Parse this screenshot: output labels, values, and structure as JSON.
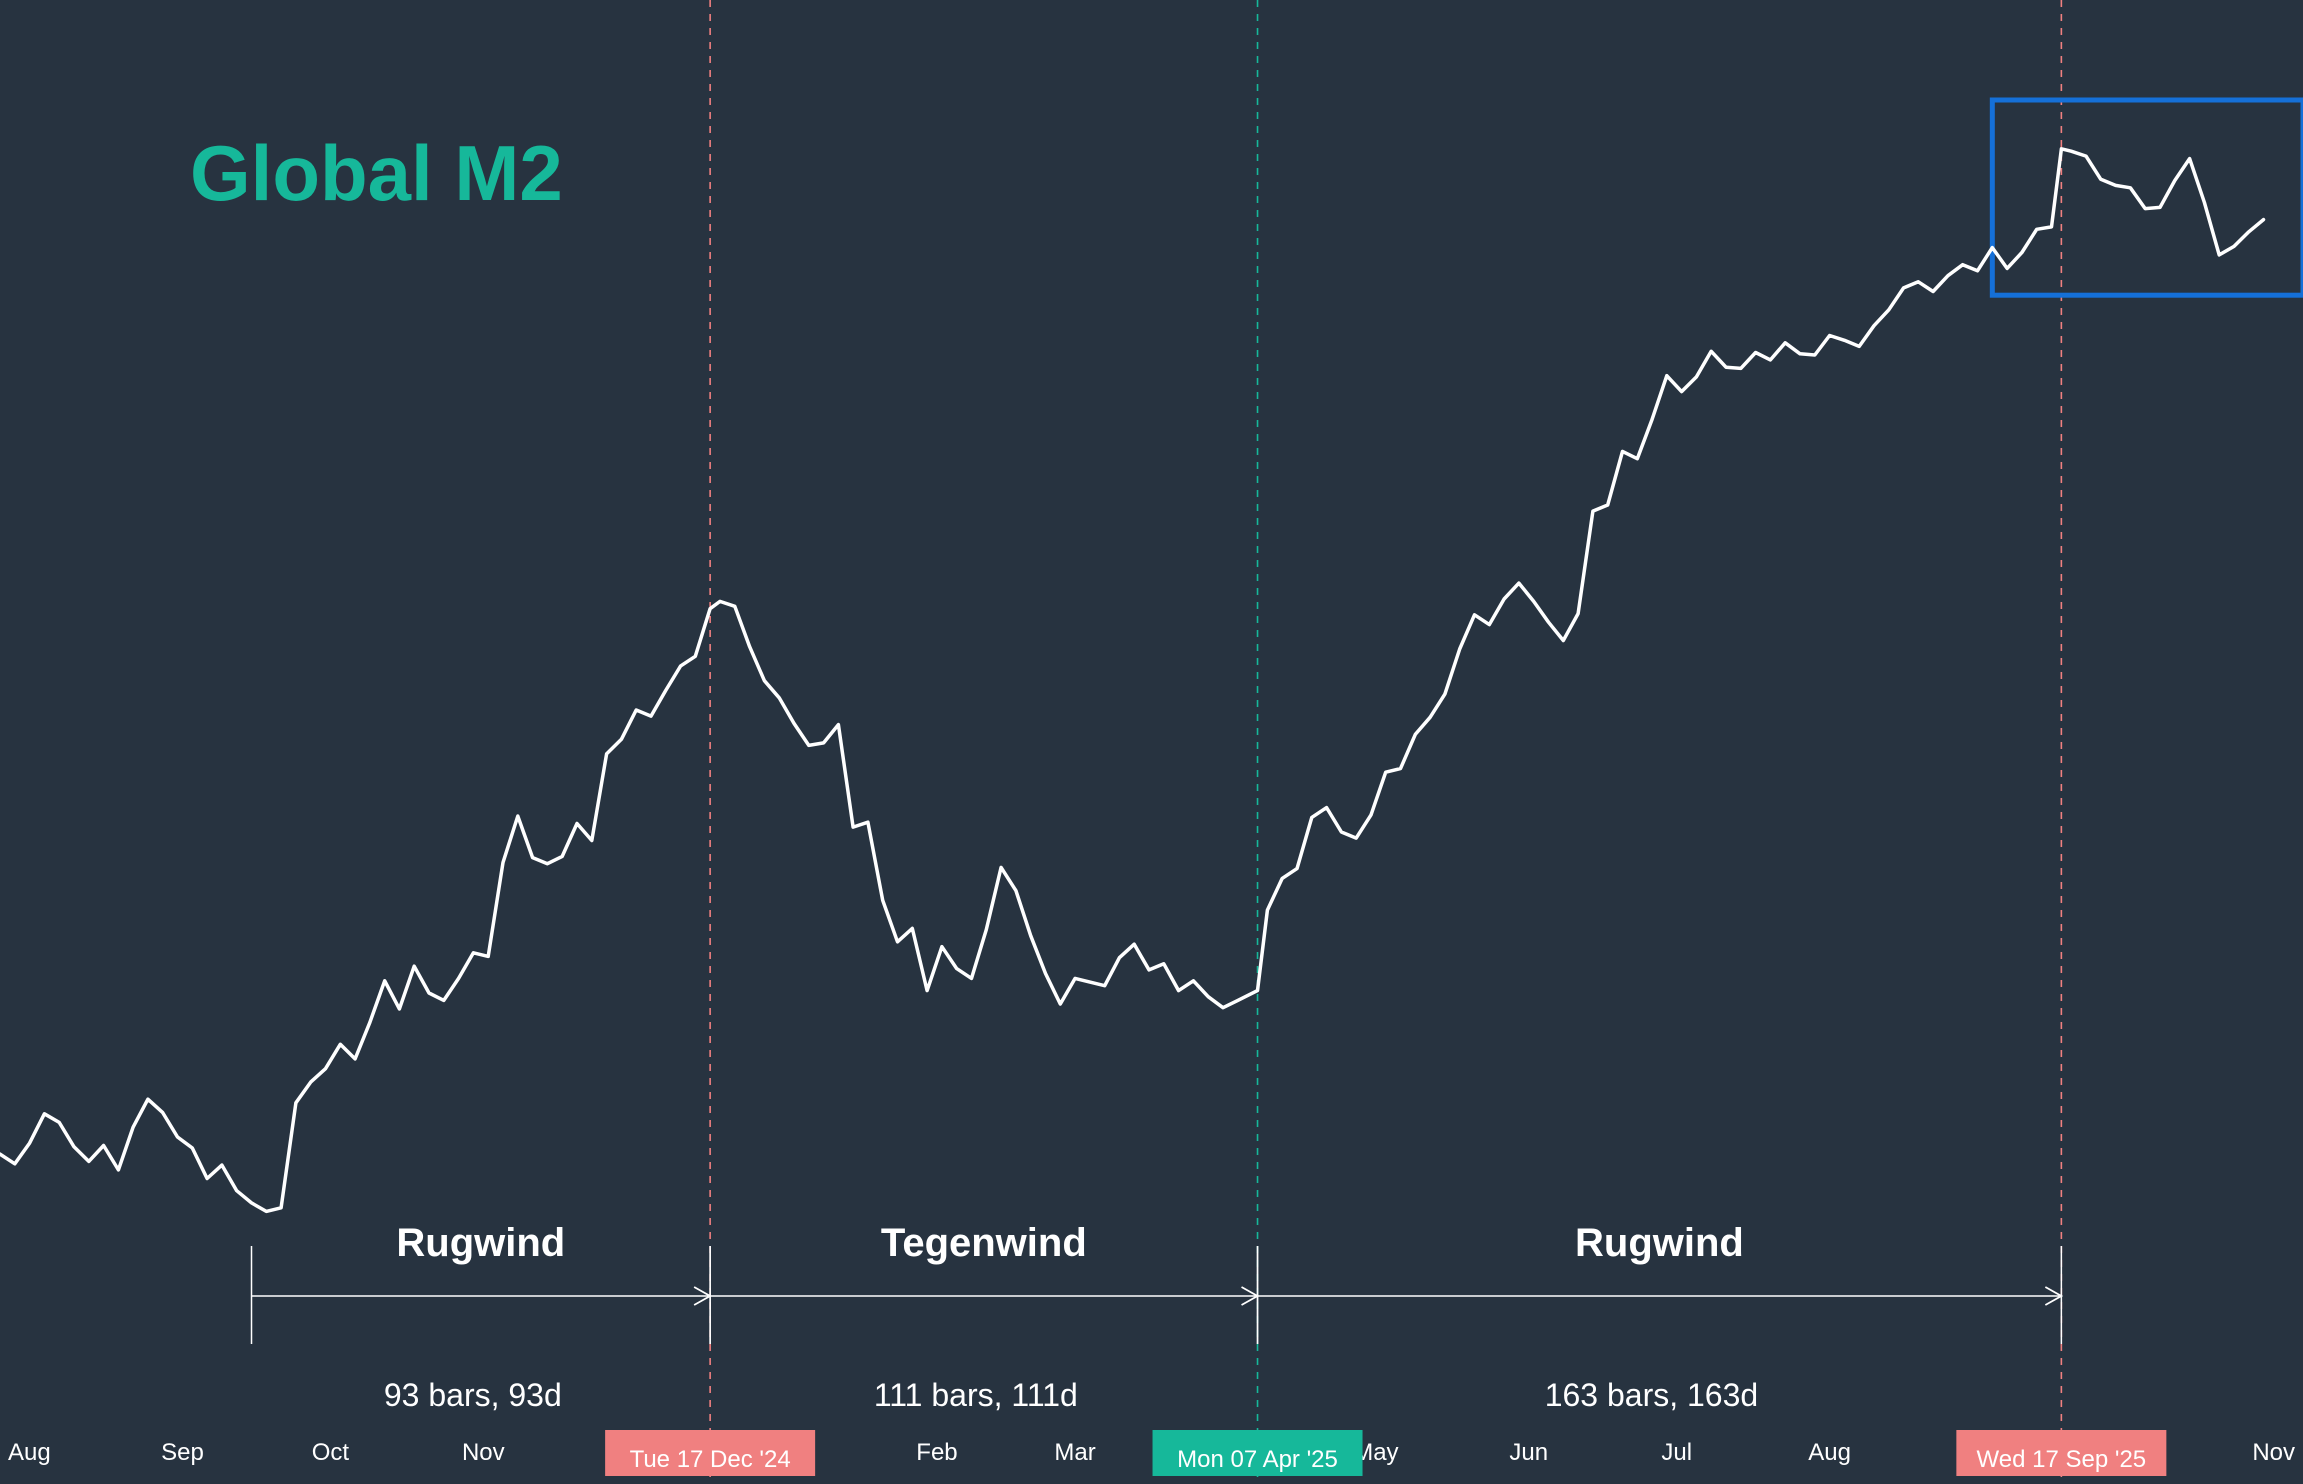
{
  "colors": {
    "background": "#273340",
    "title": "#16b89a",
    "line": "#ffffff",
    "headwind_marker": "#f08080",
    "tailwind_marker": "#16b89a",
    "highlight_box": "#1570d8"
  },
  "chart_data": {
    "type": "line",
    "title": "Global M2",
    "grid": false,
    "x_axis": {
      "start": "2024-07-26",
      "end": "2025-11-05",
      "tick_labels": [
        {
          "label": "Aug",
          "date": "2024-08-01"
        },
        {
          "label": "Sep",
          "date": "2024-09-01"
        },
        {
          "label": "Oct",
          "date": "2024-10-01"
        },
        {
          "label": "Nov",
          "date": "2024-11-01"
        },
        {
          "label": "Feb",
          "date": "2025-02-01"
        },
        {
          "label": "Mar",
          "date": "2025-03-01"
        },
        {
          "label": "May",
          "date": "2025-05-01"
        },
        {
          "label": "Jun",
          "date": "2025-06-01"
        },
        {
          "label": "Jul",
          "date": "2025-07-01"
        },
        {
          "label": "Aug",
          "date": "2025-08-01"
        },
        {
          "label": "Nov",
          "date": "2025-11-01"
        }
      ]
    },
    "y_range": [
      0,
      100
    ],
    "series": [
      {
        "points": [
          [
            "2024-07-26",
            13.6
          ],
          [
            "2024-07-29",
            12.8
          ],
          [
            "2024-08-01",
            14.5
          ],
          [
            "2024-08-04",
            16.9
          ],
          [
            "2024-08-07",
            16.2
          ],
          [
            "2024-08-10",
            14.2
          ],
          [
            "2024-08-13",
            13.0
          ],
          [
            "2024-08-16",
            14.3
          ],
          [
            "2024-08-19",
            12.3
          ],
          [
            "2024-08-22",
            15.8
          ],
          [
            "2024-08-25",
            18.1
          ],
          [
            "2024-08-28",
            17.0
          ],
          [
            "2024-08-31",
            15.0
          ],
          [
            "2024-09-03",
            14.1
          ],
          [
            "2024-09-06",
            11.6
          ],
          [
            "2024-09-09",
            12.7
          ],
          [
            "2024-09-12",
            10.6
          ],
          [
            "2024-09-15",
            9.6
          ],
          [
            "2024-09-18",
            8.9
          ],
          [
            "2024-09-21",
            9.2
          ],
          [
            "2024-09-24",
            17.8
          ],
          [
            "2024-09-27",
            19.5
          ],
          [
            "2024-09-30",
            20.6
          ],
          [
            "2024-10-03",
            22.6
          ],
          [
            "2024-10-06",
            21.4
          ],
          [
            "2024-10-09",
            24.4
          ],
          [
            "2024-10-12",
            27.8
          ],
          [
            "2024-10-15",
            25.5
          ],
          [
            "2024-10-18",
            29.0
          ],
          [
            "2024-10-21",
            26.8
          ],
          [
            "2024-10-24",
            26.2
          ],
          [
            "2024-10-27",
            28.0
          ],
          [
            "2024-10-30",
            30.1
          ],
          [
            "2024-11-02",
            29.8
          ],
          [
            "2024-11-05",
            37.5
          ],
          [
            "2024-11-08",
            41.3
          ],
          [
            "2024-11-11",
            37.9
          ],
          [
            "2024-11-14",
            37.4
          ],
          [
            "2024-11-17",
            38.0
          ],
          [
            "2024-11-20",
            40.7
          ],
          [
            "2024-11-23",
            39.3
          ],
          [
            "2024-11-26",
            46.4
          ],
          [
            "2024-11-29",
            47.6
          ],
          [
            "2024-12-02",
            50.0
          ],
          [
            "2024-12-05",
            49.5
          ],
          [
            "2024-12-08",
            51.6
          ],
          [
            "2024-12-11",
            53.6
          ],
          [
            "2024-12-14",
            54.4
          ],
          [
            "2024-12-17",
            58.3
          ],
          [
            "2024-12-19",
            58.9
          ],
          [
            "2024-12-22",
            58.5
          ],
          [
            "2024-12-25",
            55.2
          ],
          [
            "2024-12-28",
            52.4
          ],
          [
            "2024-12-31",
            51.0
          ],
          [
            "2025-01-03",
            48.9
          ],
          [
            "2025-01-06",
            47.1
          ],
          [
            "2025-01-09",
            47.3
          ],
          [
            "2025-01-12",
            48.8
          ],
          [
            "2025-01-15",
            40.4
          ],
          [
            "2025-01-18",
            40.8
          ],
          [
            "2025-01-21",
            34.4
          ],
          [
            "2025-01-24",
            31.0
          ],
          [
            "2025-01-27",
            32.1
          ],
          [
            "2025-01-30",
            27.0
          ],
          [
            "2025-02-02",
            30.6
          ],
          [
            "2025-02-05",
            28.8
          ],
          [
            "2025-02-08",
            28.0
          ],
          [
            "2025-02-11",
            32.0
          ],
          [
            "2025-02-14",
            37.1
          ],
          [
            "2025-02-17",
            35.2
          ],
          [
            "2025-02-20",
            31.5
          ],
          [
            "2025-02-23",
            28.4
          ],
          [
            "2025-02-26",
            25.9
          ],
          [
            "2025-03-01",
            28.0
          ],
          [
            "2025-03-04",
            27.7
          ],
          [
            "2025-03-07",
            27.4
          ],
          [
            "2025-03-10",
            29.7
          ],
          [
            "2025-03-13",
            30.8
          ],
          [
            "2025-03-16",
            28.7
          ],
          [
            "2025-03-19",
            29.2
          ],
          [
            "2025-03-22",
            27.0
          ],
          [
            "2025-03-25",
            27.8
          ],
          [
            "2025-03-28",
            26.5
          ],
          [
            "2025-03-31",
            25.6
          ],
          [
            "2025-04-03",
            26.2
          ],
          [
            "2025-04-07",
            27.0
          ],
          [
            "2025-04-09",
            33.6
          ],
          [
            "2025-04-12",
            36.2
          ],
          [
            "2025-04-15",
            37.0
          ],
          [
            "2025-04-18",
            41.2
          ],
          [
            "2025-04-21",
            42.0
          ],
          [
            "2025-04-24",
            40.0
          ],
          [
            "2025-04-27",
            39.5
          ],
          [
            "2025-04-30",
            41.4
          ],
          [
            "2025-05-03",
            44.9
          ],
          [
            "2025-05-06",
            45.2
          ],
          [
            "2025-05-09",
            48.0
          ],
          [
            "2025-05-12",
            49.4
          ],
          [
            "2025-05-15",
            51.3
          ],
          [
            "2025-05-18",
            55.0
          ],
          [
            "2025-05-21",
            57.8
          ],
          [
            "2025-05-24",
            57.0
          ],
          [
            "2025-05-27",
            59.1
          ],
          [
            "2025-05-30",
            60.4
          ],
          [
            "2025-06-02",
            58.9
          ],
          [
            "2025-06-05",
            57.2
          ],
          [
            "2025-06-08",
            55.7
          ],
          [
            "2025-06-11",
            57.9
          ],
          [
            "2025-06-14",
            66.3
          ],
          [
            "2025-06-17",
            66.8
          ],
          [
            "2025-06-20",
            71.2
          ],
          [
            "2025-06-23",
            70.6
          ],
          [
            "2025-06-26",
            73.8
          ],
          [
            "2025-06-29",
            77.4
          ],
          [
            "2025-07-02",
            76.1
          ],
          [
            "2025-07-05",
            77.3
          ],
          [
            "2025-07-08",
            79.4
          ],
          [
            "2025-07-11",
            78.1
          ],
          [
            "2025-07-14",
            78.0
          ],
          [
            "2025-07-17",
            79.3
          ],
          [
            "2025-07-20",
            78.7
          ],
          [
            "2025-07-23",
            80.1
          ],
          [
            "2025-07-26",
            79.2
          ],
          [
            "2025-07-29",
            79.1
          ],
          [
            "2025-08-01",
            80.7
          ],
          [
            "2025-08-04",
            80.3
          ],
          [
            "2025-08-07",
            79.8
          ],
          [
            "2025-08-10",
            81.5
          ],
          [
            "2025-08-13",
            82.8
          ],
          [
            "2025-08-16",
            84.6
          ],
          [
            "2025-08-19",
            85.1
          ],
          [
            "2025-08-22",
            84.3
          ],
          [
            "2025-08-25",
            85.6
          ],
          [
            "2025-08-28",
            86.5
          ],
          [
            "2025-08-31",
            86.0
          ],
          [
            "2025-09-03",
            87.9
          ],
          [
            "2025-09-06",
            86.2
          ],
          [
            "2025-09-09",
            87.5
          ],
          [
            "2025-09-12",
            89.4
          ],
          [
            "2025-09-15",
            89.6
          ],
          [
            "2025-09-17",
            96.0
          ],
          [
            "2025-09-19",
            95.8
          ],
          [
            "2025-09-22",
            95.4
          ],
          [
            "2025-09-25",
            93.5
          ],
          [
            "2025-09-28",
            93.0
          ],
          [
            "2025-10-01",
            92.8
          ],
          [
            "2025-10-04",
            91.1
          ],
          [
            "2025-10-07",
            91.2
          ],
          [
            "2025-10-10",
            93.4
          ],
          [
            "2025-10-13",
            95.2
          ],
          [
            "2025-10-16",
            91.6
          ],
          [
            "2025-10-19",
            87.3
          ],
          [
            "2025-10-22",
            88.0
          ],
          [
            "2025-10-25",
            89.2
          ],
          [
            "2025-10-28",
            90.2
          ]
        ]
      }
    ],
    "markers": [
      {
        "date": "2024-12-17",
        "label": "Tue 17 Dec '24",
        "kind": "headwind"
      },
      {
        "date": "2025-04-07",
        "label": "Mon 07 Apr '25",
        "kind": "tailwind"
      },
      {
        "date": "2025-09-17",
        "label": "Wed 17 Sep '25",
        "kind": "headwind"
      }
    ],
    "segments": [
      {
        "start": "2024-09-15",
        "end": "2024-12-17",
        "label": "Rugwind",
        "count": "93 bars, 93d"
      },
      {
        "start": "2024-12-17",
        "end": "2025-04-07",
        "label": "Tegenwind",
        "count": "111 bars, 111d"
      },
      {
        "start": "2025-04-07",
        "end": "2025-09-17",
        "label": "Rugwind",
        "count": "163 bars, 163d"
      }
    ],
    "highlight": {
      "start": "2025-09-03",
      "end": "2025-11-05",
      "y_range": [
        84,
        100
      ]
    }
  }
}
